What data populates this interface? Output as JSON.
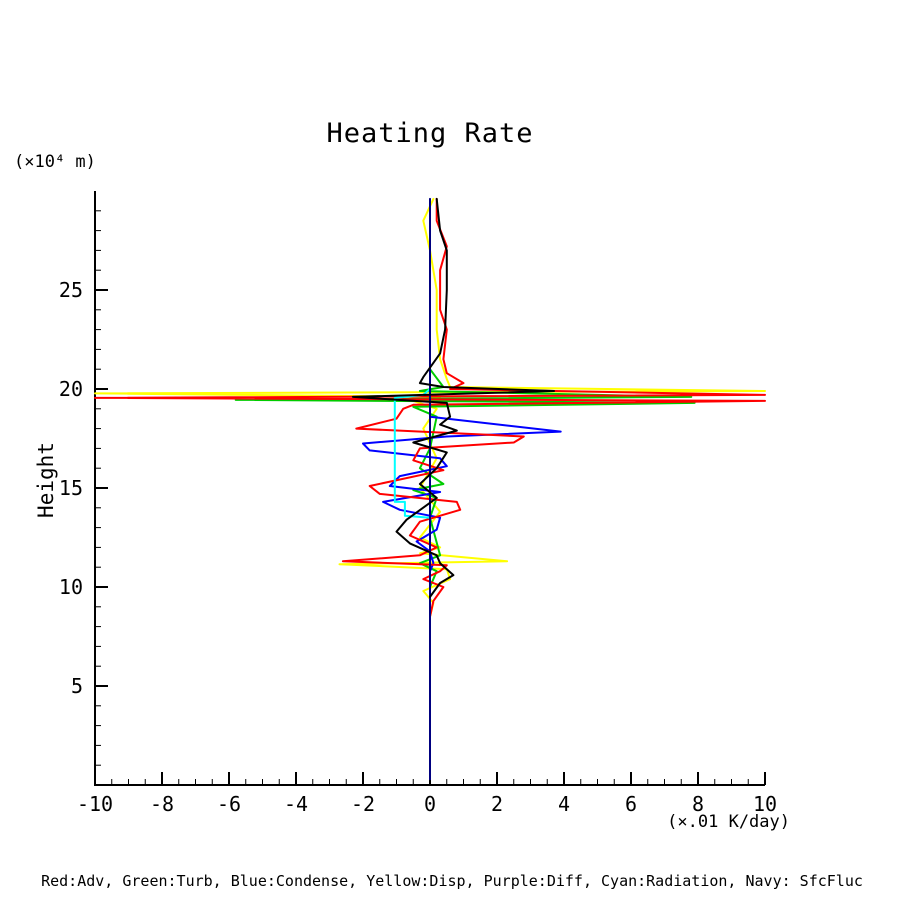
{
  "title": "Heating Rate",
  "y_unit_label": "(×10⁴ m)",
  "y_axis_label": "Height",
  "x_unit_label": "(×.01 K/day)",
  "legend_text": "Red:Adv, Green:Turb, Blue:Condense, Yellow:Disp, Purple:Diff, Cyan:Radiation, Navy: SfcFluc",
  "chart_data": {
    "type": "line",
    "title": "Heating Rate",
    "xlabel": "(×.01 K/day)",
    "ylabel": "Height (×10⁴ m)",
    "xlim": [
      -10,
      10
    ],
    "ylim": [
      0,
      30
    ],
    "grid": false,
    "legend_position": "bottom",
    "x_ticks_major": [
      -10,
      -8,
      -6,
      -4,
      -2,
      0,
      2,
      4,
      6,
      8,
      10
    ],
    "x_tick_labels": [
      "-10",
      "-8",
      "-6",
      "-4",
      "-2",
      "0",
      "2",
      "4",
      "6",
      "8",
      "10"
    ],
    "x_minor_step": 0.5,
    "y_ticks_major": [
      5,
      10,
      15,
      20,
      25
    ],
    "y_tick_labels": [
      "5",
      "10",
      "15",
      "20",
      "25"
    ],
    "y_minor_step": 1,
    "axis_color": "#000000",
    "series": [
      {
        "key": "disp",
        "name": "Disp",
        "color": "#ffff00",
        "points": [
          [
            0.1,
            29.6
          ],
          [
            -0.2,
            28.5
          ],
          [
            0,
            27
          ],
          [
            0.2,
            25
          ],
          [
            0.2,
            23
          ],
          [
            0.3,
            21.5
          ],
          [
            0.5,
            20.5
          ],
          [
            0.6,
            20.1
          ],
          [
            10,
            19.9
          ],
          [
            -10,
            19.78
          ],
          [
            0.3,
            19.6
          ],
          [
            -0.5,
            19.4
          ],
          [
            0.2,
            19.0
          ],
          [
            -0.2,
            18.0
          ],
          [
            0.2,
            16.5
          ],
          [
            -0.3,
            15.0
          ],
          [
            0.3,
            13.8
          ],
          [
            -0.3,
            12.5
          ],
          [
            0.3,
            12.0
          ],
          [
            -0.3,
            11.7
          ],
          [
            2.3,
            11.3
          ],
          [
            -2.7,
            11.15
          ],
          [
            0.5,
            10.9
          ],
          [
            0.6,
            10.4
          ],
          [
            -0.2,
            9.8
          ],
          [
            0.1,
            9.2
          ],
          [
            0,
            8.5
          ],
          [
            0,
            8.0
          ]
        ]
      },
      {
        "key": "turb",
        "name": "Turb",
        "color": "#00cc00",
        "points": [
          [
            0,
            29.5
          ],
          [
            0,
            21.0
          ],
          [
            0.4,
            20.1
          ],
          [
            -0.3,
            19.9
          ],
          [
            7.8,
            19.6
          ],
          [
            -5.8,
            19.45
          ],
          [
            7.9,
            19.3
          ],
          [
            -0.5,
            19.1
          ],
          [
            0.2,
            18.6
          ],
          [
            0,
            17.0
          ],
          [
            -0.3,
            16.0
          ],
          [
            0.4,
            15.2
          ],
          [
            -0.5,
            14.9
          ],
          [
            0.2,
            14.5
          ],
          [
            0,
            13.5
          ],
          [
            0.3,
            11.6
          ],
          [
            -0.3,
            11.2
          ],
          [
            0.2,
            10.8
          ],
          [
            0,
            10.0
          ],
          [
            0,
            9.0
          ]
        ]
      },
      {
        "key": "condense",
        "name": "Condense",
        "color": "#0000ff",
        "points": [
          [
            0,
            18.6
          ],
          [
            3.9,
            17.85
          ],
          [
            0.5,
            17.6
          ],
          [
            -2.0,
            17.25
          ],
          [
            -1.8,
            16.9
          ],
          [
            0.3,
            16.5
          ],
          [
            0.5,
            16.1
          ],
          [
            -0.9,
            15.6
          ],
          [
            -1.2,
            15.1
          ],
          [
            0.3,
            14.8
          ],
          [
            -1.4,
            14.3
          ],
          [
            -0.9,
            13.9
          ],
          [
            0.3,
            13.5
          ],
          [
            0.2,
            12.9
          ],
          [
            -0.4,
            12.3
          ],
          [
            0,
            11.8
          ],
          [
            0.1,
            11.2
          ],
          [
            0,
            10.8
          ]
        ]
      },
      {
        "key": "adv",
        "name": "Adv",
        "color": "#ff0000",
        "points": [
          [
            0.2,
            29.6
          ],
          [
            0.2,
            28.5
          ],
          [
            0.5,
            27.2
          ],
          [
            0.3,
            26.0
          ],
          [
            0.3,
            24.0
          ],
          [
            0.5,
            23.0
          ],
          [
            0.4,
            21.5
          ],
          [
            0.5,
            20.8
          ],
          [
            1.0,
            20.3
          ],
          [
            0.6,
            20.0
          ],
          [
            10,
            19.7
          ],
          [
            -10,
            19.55
          ],
          [
            10,
            19.4
          ],
          [
            -0.5,
            19.2
          ],
          [
            -0.8,
            19.0
          ],
          [
            -1.0,
            18.5
          ],
          [
            -2.2,
            18.0
          ],
          [
            2.8,
            17.6
          ],
          [
            2.5,
            17.3
          ],
          [
            -0.3,
            17.0
          ],
          [
            -0.5,
            16.4
          ],
          [
            0.4,
            15.9
          ],
          [
            -1.8,
            15.1
          ],
          [
            -1.5,
            14.7
          ],
          [
            0.8,
            14.3
          ],
          [
            0.9,
            13.9
          ],
          [
            -0.3,
            13.3
          ],
          [
            -0.6,
            12.6
          ],
          [
            0.2,
            12.0
          ],
          [
            -0.3,
            11.6
          ],
          [
            -2.6,
            11.3
          ],
          [
            0.5,
            11.1
          ],
          [
            0.3,
            10.8
          ],
          [
            -0.2,
            10.4
          ],
          [
            0.4,
            10.0
          ],
          [
            0.1,
            9.3
          ],
          [
            0,
            8.5
          ],
          [
            0,
            8.0
          ]
        ]
      },
      {
        "key": "radiation",
        "name": "Radiation",
        "color": "#00ffff",
        "points": [
          [
            0,
            20.0
          ],
          [
            -0.2,
            19.7
          ],
          [
            -1.05,
            19.55
          ],
          [
            -1.05,
            14.3
          ],
          [
            -0.75,
            14.3
          ],
          [
            -0.75,
            13.6
          ],
          [
            0,
            13.5
          ],
          [
            0,
            10.5
          ]
        ]
      },
      {
        "key": "diff",
        "name": "Diff",
        "color": "#800080",
        "points": [
          [
            0,
            0.3
          ],
          [
            0,
            29.5
          ]
        ]
      },
      {
        "key": "sfcfluc",
        "name": "SfcFluc",
        "color": "#000080",
        "points": [
          [
            0,
            0.3
          ],
          [
            0,
            29.6
          ]
        ]
      },
      {
        "key": "unlabeled-black",
        "name": "unlabeled-black",
        "color": "#000000",
        "points": [
          [
            0.2,
            29.6
          ],
          [
            0.3,
            28.0
          ],
          [
            0.5,
            27.0
          ],
          [
            0.5,
            25.0
          ],
          [
            0.45,
            23.0
          ],
          [
            0.3,
            21.8
          ],
          [
            -0.2,
            20.6
          ],
          [
            -0.3,
            20.3
          ],
          [
            0.4,
            20.1
          ],
          [
            3.7,
            19.9
          ],
          [
            -2.3,
            19.6
          ],
          [
            0.5,
            19.3
          ],
          [
            0.6,
            18.6
          ],
          [
            0.3,
            18.2
          ],
          [
            0.8,
            17.9
          ],
          [
            -0.5,
            17.3
          ],
          [
            0.5,
            16.8
          ],
          [
            0.2,
            16.0
          ],
          [
            -0.3,
            15.2
          ],
          [
            0.2,
            14.5
          ],
          [
            -0.7,
            13.4
          ],
          [
            -1.0,
            12.8
          ],
          [
            -0.6,
            12.2
          ],
          [
            0.2,
            11.6
          ],
          [
            0.3,
            11.2
          ],
          [
            0.7,
            10.6
          ],
          [
            0.3,
            10.2
          ],
          [
            0,
            9.5
          ]
        ]
      }
    ]
  }
}
